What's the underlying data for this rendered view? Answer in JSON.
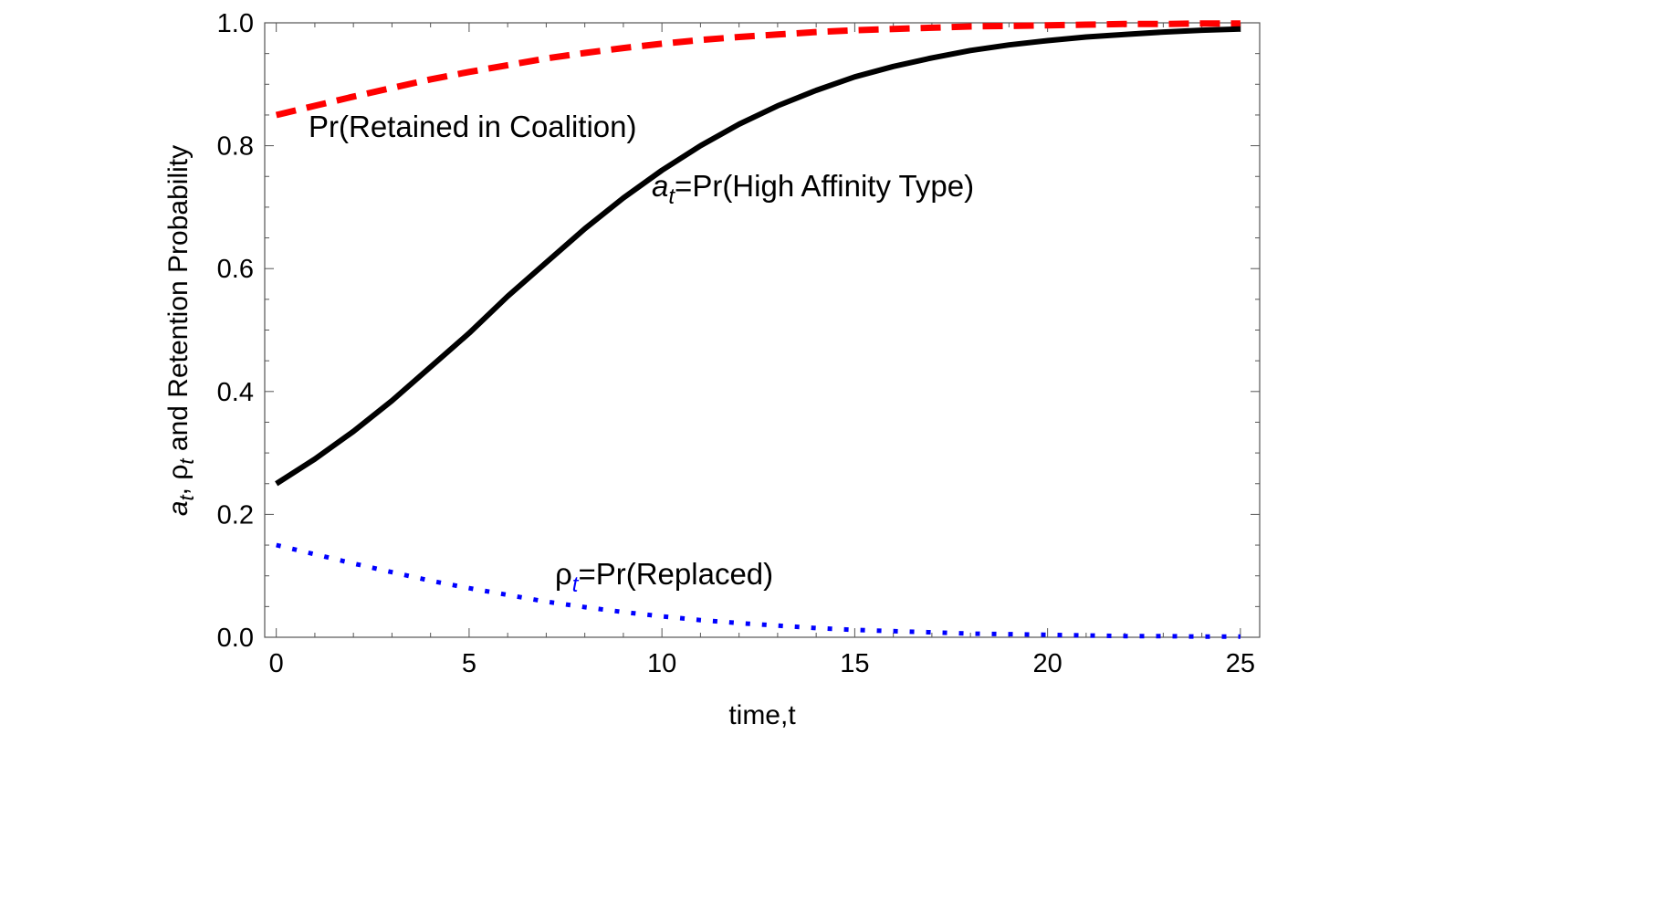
{
  "chart_data": {
    "type": "line",
    "title": "",
    "xlabel": "time,t",
    "ylabel_parts": {
      "a": "a",
      "sub1": "t",
      "sep1": ", ",
      "rho": "ρ",
      "sub2": "t",
      "rest": " and Retention Probability"
    },
    "xlim": [
      -0.3,
      25.5
    ],
    "ylim": [
      0,
      1
    ],
    "x_ticks": [
      0,
      5,
      10,
      15,
      20,
      25
    ],
    "x_tick_labels": [
      "0",
      "5",
      "10",
      "15",
      "20",
      "25"
    ],
    "y_ticks": [
      0,
      0.2,
      0.4,
      0.6,
      0.8,
      1.0
    ],
    "y_tick_labels": [
      "0.0",
      "0.2",
      "0.4",
      "0.6",
      "0.8",
      "1.0"
    ],
    "grid": false,
    "x": [
      0,
      1,
      2,
      3,
      4,
      5,
      6,
      7,
      8,
      9,
      10,
      11,
      12,
      13,
      14,
      15,
      16,
      17,
      18,
      19,
      20,
      21,
      22,
      23,
      24,
      25
    ],
    "series": [
      {
        "key": "retained",
        "color": "#ff0000",
        "style": "dashed",
        "values": [
          0.85,
          0.865,
          0.88,
          0.894,
          0.908,
          0.92,
          0.931,
          0.942,
          0.951,
          0.959,
          0.966,
          0.972,
          0.977,
          0.981,
          0.985,
          0.988,
          0.99,
          0.992,
          0.994,
          0.995,
          0.996,
          0.997,
          0.998,
          0.998,
          0.999,
          0.999
        ]
      },
      {
        "key": "high_affinity",
        "color": "#000000",
        "style": "solid",
        "values": [
          0.25,
          0.29,
          0.335,
          0.385,
          0.44,
          0.495,
          0.555,
          0.61,
          0.665,
          0.715,
          0.76,
          0.8,
          0.835,
          0.865,
          0.89,
          0.912,
          0.929,
          0.943,
          0.955,
          0.964,
          0.971,
          0.977,
          0.981,
          0.985,
          0.988,
          0.99
        ]
      },
      {
        "key": "replaced",
        "color": "#0000ff",
        "style": "dotted",
        "values": [
          0.15,
          0.135,
          0.12,
          0.106,
          0.092,
          0.08,
          0.069,
          0.058,
          0.049,
          0.041,
          0.034,
          0.028,
          0.023,
          0.019,
          0.015,
          0.012,
          0.01,
          0.008,
          0.006,
          0.005,
          0.004,
          0.003,
          0.002,
          0.002,
          0.001,
          0.001
        ]
      }
    ],
    "annotations": {
      "retained": {
        "text": "Pr(Retained in Coalition)"
      },
      "high_affinity": {
        "var": "a",
        "sub": "t",
        "eq": "=",
        "text": "Pr(High Affinity Type)"
      },
      "replaced": {
        "var": "ρ",
        "sub": "t",
        "eq": "=",
        "text": "Pr(Replaced)"
      }
    }
  }
}
